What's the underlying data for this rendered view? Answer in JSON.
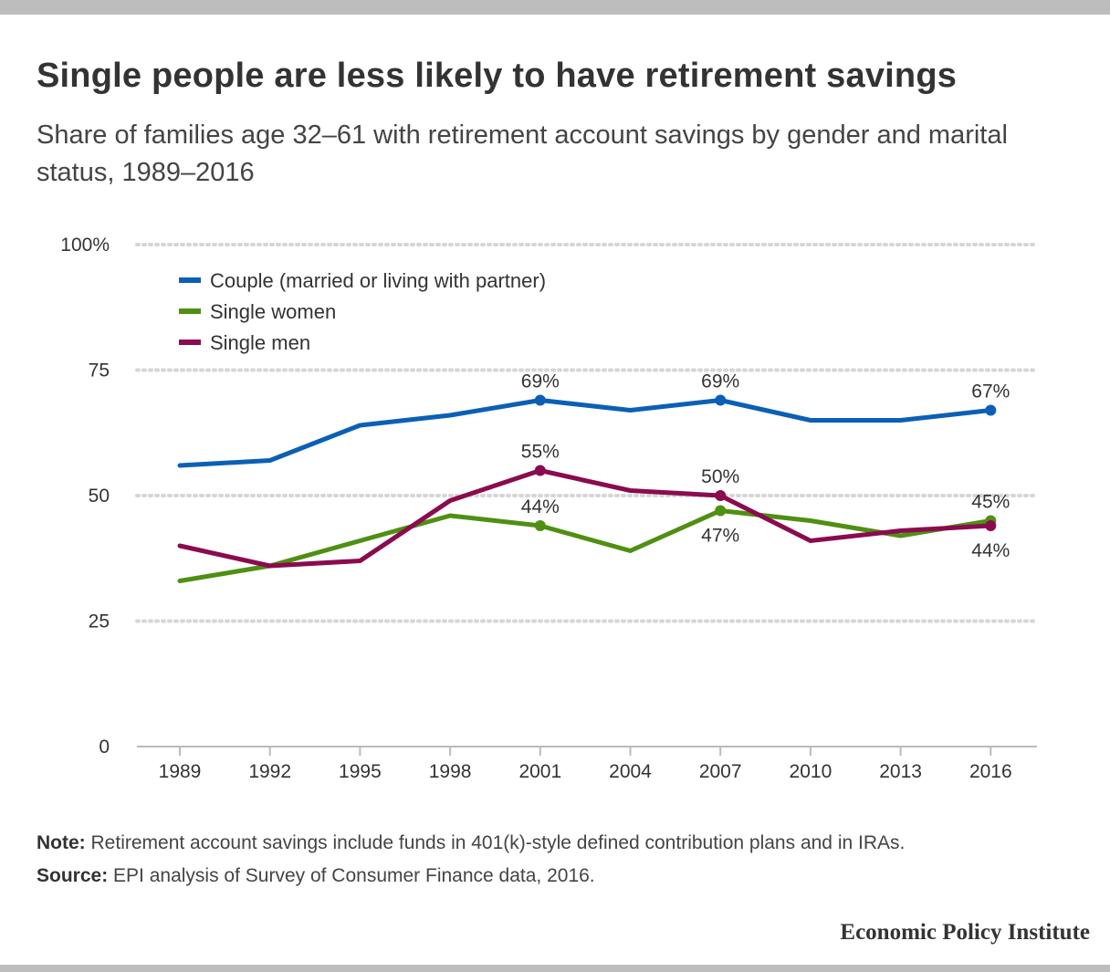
{
  "title": "Single people are less likely to have retirement savings",
  "subtitle": "Share of families age 32–61 with retirement account savings by gender and marital status, 1989–2016",
  "note_label": "Note:",
  "note_text": "Retirement account savings include funds in 401(k)-style defined contribution plans and in IRAs.",
  "source_label": "Source:",
  "source_text": "EPI analysis of Survey of Consumer Finance data, 2016.",
  "brand": "Economic Policy Institute",
  "colors": {
    "couple": "#0b60b5",
    "single_women": "#4f8f12",
    "single_men": "#8a0b4f",
    "grid": "#d6d6d6",
    "axis": "#bbbbbb"
  },
  "chart_data": {
    "type": "line",
    "x": [
      "1989",
      "1992",
      "1995",
      "1998",
      "2001",
      "2004",
      "2007",
      "2010",
      "2013",
      "2016"
    ],
    "ylim": [
      0,
      100
    ],
    "yticks": [
      0,
      25,
      50,
      75,
      100
    ],
    "ytick_labels": [
      "0",
      "25",
      "50",
      "75",
      "100%"
    ],
    "grid": "horizontal dotted",
    "legend_position": "top-left",
    "series": [
      {
        "name": "Couple (married or living with partner)",
        "color": "#0b60b5",
        "values": [
          56,
          57,
          64,
          66,
          69,
          67,
          69,
          65,
          65,
          67
        ]
      },
      {
        "name": "Single women",
        "color": "#4f8f12",
        "values": [
          33,
          36,
          41,
          46,
          44,
          39,
          47,
          45,
          42,
          45
        ]
      },
      {
        "name": "Single men",
        "color": "#8a0b4f",
        "values": [
          40,
          36,
          37,
          49,
          55,
          51,
          50,
          41,
          43,
          44
        ]
      }
    ],
    "annotations": [
      {
        "series": 0,
        "index": 4,
        "text": "69%",
        "pos": "above"
      },
      {
        "series": 0,
        "index": 6,
        "text": "69%",
        "pos": "above"
      },
      {
        "series": 0,
        "index": 9,
        "text": "67%",
        "pos": "above"
      },
      {
        "series": 2,
        "index": 4,
        "text": "55%",
        "pos": "above"
      },
      {
        "series": 1,
        "index": 4,
        "text": "44%",
        "pos": "above"
      },
      {
        "series": 2,
        "index": 6,
        "text": "50%",
        "pos": "above"
      },
      {
        "series": 1,
        "index": 6,
        "text": "47%",
        "pos": "below"
      },
      {
        "series": 1,
        "index": 9,
        "text": "45%",
        "pos": "above"
      },
      {
        "series": 2,
        "index": 9,
        "text": "44%",
        "pos": "below"
      }
    ]
  }
}
